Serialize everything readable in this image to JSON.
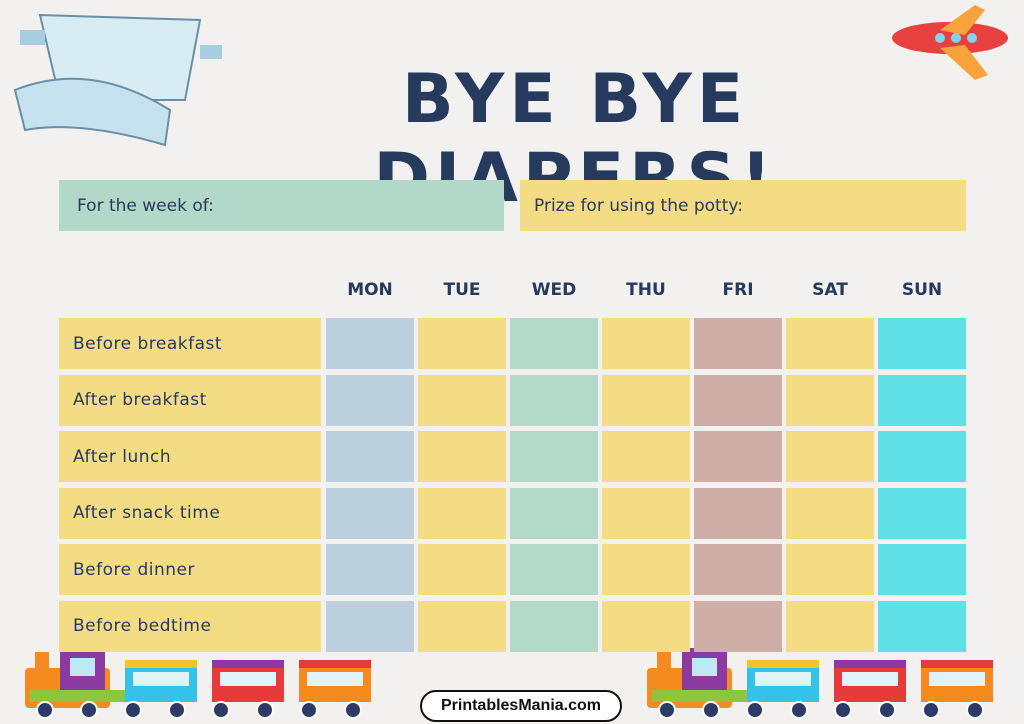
{
  "title": "BYE BYE DIAPERS!",
  "week_label": "For the week of:",
  "prize_label": "Prize for using the potty:",
  "days": [
    "MON",
    "TUE",
    "WED",
    "THU",
    "FRI",
    "SAT",
    "SUN"
  ],
  "rows": [
    "Before breakfast",
    "After breakfast",
    "After lunch",
    "After snack time",
    "Before dinner",
    "Before bedtime"
  ],
  "footer": "PrintablesMania.com"
}
